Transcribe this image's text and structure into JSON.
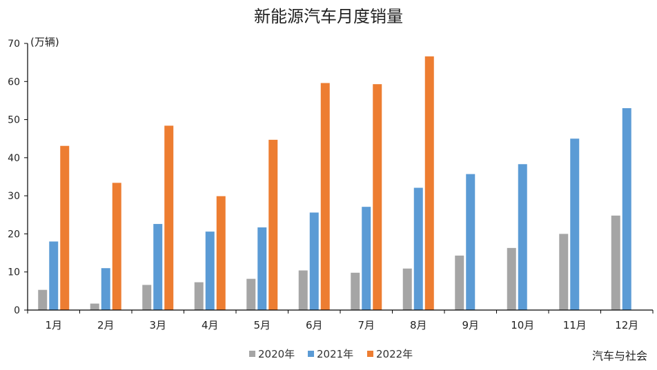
{
  "chart_data": {
    "type": "bar",
    "title": "新能源汽车月度销量",
    "unit_label": "(万辆)",
    "xlabel": "",
    "ylabel": "",
    "ylim": [
      0,
      70
    ],
    "yticks": [
      0,
      10,
      20,
      30,
      40,
      50,
      60,
      70
    ],
    "grid": false,
    "legend_position": "bottom",
    "categories": [
      "1月",
      "2月",
      "3月",
      "4月",
      "5月",
      "6月",
      "7月",
      "8月",
      "9月",
      "10月",
      "11月",
      "12月"
    ],
    "series": [
      {
        "name": "2020年",
        "color": "#a5a5a5",
        "values": [
          5.3,
          1.7,
          6.6,
          7.3,
          8.2,
          10.4,
          9.8,
          10.9,
          14.3,
          16.3,
          20.0,
          24.8
        ]
      },
      {
        "name": "2021年",
        "color": "#5b9bd5",
        "values": [
          18.0,
          11.0,
          22.6,
          20.6,
          21.7,
          25.6,
          27.1,
          32.1,
          35.7,
          38.3,
          45.0,
          53.0
        ]
      },
      {
        "name": "2022年",
        "color": "#ed7d31",
        "values": [
          43.1,
          33.4,
          48.4,
          29.9,
          44.7,
          59.6,
          59.3,
          66.6,
          null,
          null,
          null,
          null
        ]
      }
    ],
    "source_note": "汽车与社会"
  }
}
